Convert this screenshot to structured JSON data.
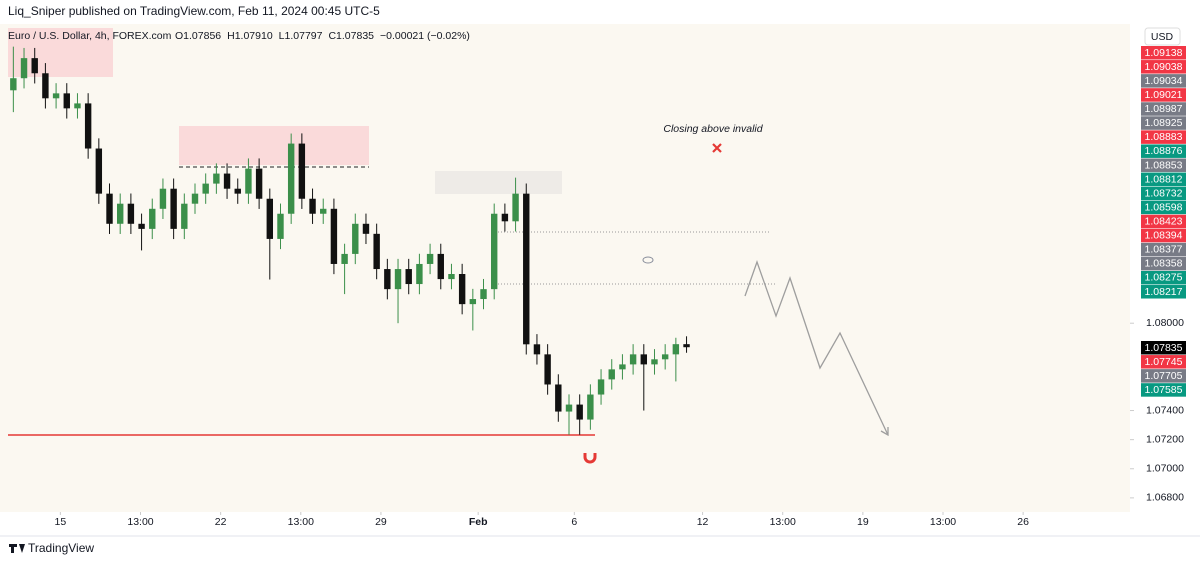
{
  "header": {
    "publisher": "Liq_Sniper published on TradingView.com, Feb 11, 2024 00:45 UTC-5",
    "symbol": "Euro / U.S. Dollar, 4h, FOREX.com",
    "ohlc": [
      "O1.07856",
      "H1.07910",
      "L1.07797",
      "C1.07835",
      "−0.00021 (−0.02%)"
    ],
    "currency": "USD",
    "annotation": "Closing above invalid",
    "footer": "TradingView"
  },
  "chart_data": {
    "type": "candlestick",
    "up_color": "#3b8f4a",
    "down_color": "#111111",
    "open": [
      1.096,
      1.09683,
      1.09821,
      1.09717,
      1.09545,
      1.09579,
      1.09476,
      1.0951,
      1.092,
      1.0889,
      1.08683,
      1.08821,
      1.08683,
      1.08648,
      1.08786,
      1.08924,
      1.08648,
      1.08821,
      1.0889,
      1.08959,
      1.09028,
      1.08924,
      1.0889,
      1.09062,
      1.08855,
      1.08579,
      1.08752,
      1.09234,
      1.08855,
      1.08752,
      1.08786,
      1.08407,
      1.08476,
      1.08683,
      1.08614,
      1.08372,
      1.08234,
      1.08372,
      1.08269,
      1.08407,
      1.08476,
      1.08303,
      1.08338,
      1.08131,
      1.08166,
      1.08234,
      1.08752,
      1.087,
      1.0889,
      1.07855,
      1.07786,
      1.07579,
      1.07393,
      1.07441,
      1.07338,
      1.0751,
      1.07614,
      1.07683,
      1.07717,
      1.07786,
      1.07717,
      1.07752,
      1.07786,
      1.07856
    ],
    "high": [
      1.099,
      1.09891,
      1.09891,
      1.09787,
      1.09649,
      1.09649,
      1.0958,
      1.0958,
      1.0927,
      1.0896,
      1.08891,
      1.08891,
      1.08753,
      1.08856,
      1.08994,
      1.08994,
      1.08891,
      1.0896,
      1.09029,
      1.09098,
      1.09098,
      1.08994,
      1.09132,
      1.09132,
      1.08925,
      1.08822,
      1.09303,
      1.09304,
      1.08925,
      1.08856,
      1.08856,
      1.08546,
      1.08753,
      1.08753,
      1.08684,
      1.08442,
      1.08442,
      1.08442,
      1.08477,
      1.08546,
      1.08546,
      1.08408,
      1.08408,
      1.08236,
      1.08304,
      1.08822,
      1.08822,
      1.09,
      1.0896,
      1.07925,
      1.07856,
      1.07649,
      1.07511,
      1.07511,
      1.0758,
      1.07684,
      1.07753,
      1.07787,
      1.07856,
      1.07856,
      1.07822,
      1.07856,
      1.079,
      1.0791
    ],
    "low": [
      1.0945,
      1.09613,
      1.09647,
      1.09475,
      1.09475,
      1.09406,
      1.09406,
      1.0913,
      1.0882,
      1.08613,
      1.08613,
      1.08613,
      1.085,
      1.08578,
      1.08716,
      1.08578,
      1.08578,
      1.08751,
      1.0882,
      1.08889,
      1.08854,
      1.0882,
      1.0882,
      1.08785,
      1.083,
      1.08509,
      1.08682,
      1.08785,
      1.08682,
      1.08682,
      1.08337,
      1.082,
      1.08406,
      1.08544,
      1.08302,
      1.08164,
      1.08,
      1.08199,
      1.08199,
      1.08337,
      1.08233,
      1.08233,
      1.08061,
      1.0795,
      1.08096,
      1.08164,
      1.0863,
      1.0863,
      1.07785,
      1.07716,
      1.07509,
      1.07323,
      1.07234,
      1.07234,
      1.07268,
      1.0744,
      1.07544,
      1.07613,
      1.07647,
      1.074,
      1.07647,
      1.07682,
      1.076,
      1.07797
    ],
    "close": [
      1.09683,
      1.09821,
      1.09717,
      1.09545,
      1.09579,
      1.09476,
      1.0951,
      1.092,
      1.0889,
      1.08683,
      1.08821,
      1.08683,
      1.08648,
      1.08786,
      1.08924,
      1.08648,
      1.08821,
      1.0889,
      1.08959,
      1.09028,
      1.08924,
      1.0889,
      1.09062,
      1.08855,
      1.08579,
      1.08752,
      1.09234,
      1.08855,
      1.08752,
      1.08786,
      1.08407,
      1.08476,
      1.08683,
      1.08614,
      1.08372,
      1.08234,
      1.08372,
      1.08269,
      1.08407,
      1.08476,
      1.08303,
      1.08338,
      1.08131,
      1.08166,
      1.08234,
      1.08752,
      1.087,
      1.0889,
      1.07855,
      1.07786,
      1.07579,
      1.07393,
      1.07441,
      1.07338,
      1.0751,
      1.07614,
      1.07683,
      1.07717,
      1.07786,
      1.07717,
      1.07752,
      1.07786,
      1.07856,
      1.07835
    ],
    "xlim": [
      -0.5,
      104.5
    ],
    "xticks": [
      {
        "value": 4.4,
        "label": "15"
      },
      {
        "value": 11.9,
        "label": "13:00"
      },
      {
        "value": 19.4,
        "label": "22"
      },
      {
        "value": 26.9,
        "label": "13:00"
      },
      {
        "value": 34.4,
        "label": "29"
      },
      {
        "value": 43.5,
        "label": "Feb"
      },
      {
        "value": 52.5,
        "label": "6"
      },
      {
        "value": 64.5,
        "label": "12"
      },
      {
        "value": 72.0,
        "label": "13:00"
      },
      {
        "value": 79.5,
        "label": "19"
      },
      {
        "value": 87.0,
        "label": "13:00"
      },
      {
        "value": 94.5,
        "label": "26"
      }
    ],
    "ylim": [
      1.06703,
      1.10028
    ],
    "yticks": [
      {
        "value": 1.08,
        "label": "1.08000"
      },
      {
        "value": 1.074,
        "label": "1.07400"
      },
      {
        "value": 1.072,
        "label": "1.07200"
      },
      {
        "value": 1.07,
        "label": "1.07000"
      },
      {
        "value": 1.068,
        "label": "1.06800"
      }
    ],
    "price_labels": [
      {
        "value": 1.09138,
        "color": "#f23645"
      },
      {
        "value": 1.09038,
        "color": "#f23645"
      },
      {
        "value": 1.09034,
        "color": "#787b86"
      },
      {
        "value": 1.09021,
        "color": "#f23645"
      },
      {
        "value": 1.08987,
        "color": "#787b86"
      },
      {
        "value": 1.08925,
        "color": "#787b86"
      },
      {
        "value": 1.08883,
        "color": "#f23645"
      },
      {
        "value": 1.08876,
        "color": "#089981"
      },
      {
        "value": 1.08853,
        "color": "#787b86"
      },
      {
        "value": 1.08812,
        "color": "#089981"
      },
      {
        "value": 1.08732,
        "color": "#089981"
      },
      {
        "value": 1.08598,
        "color": "#089981"
      },
      {
        "value": 1.08423,
        "color": "#f23645"
      },
      {
        "value": 1.08394,
        "color": "#f23645"
      },
      {
        "value": 1.08377,
        "color": "#787b86"
      },
      {
        "value": 1.08358,
        "color": "#787b86"
      },
      {
        "value": 1.08275,
        "color": "#089981"
      },
      {
        "value": 1.08217,
        "color": "#089981"
      }
    ],
    "current_labels": [
      {
        "value": 1.07835,
        "color": "#000000"
      },
      {
        "value": 1.07745,
        "color": "#f23645"
      },
      {
        "value": 1.07705,
        "color": "#787b86"
      },
      {
        "value": 1.07585,
        "color": "#089981"
      }
    ]
  }
}
